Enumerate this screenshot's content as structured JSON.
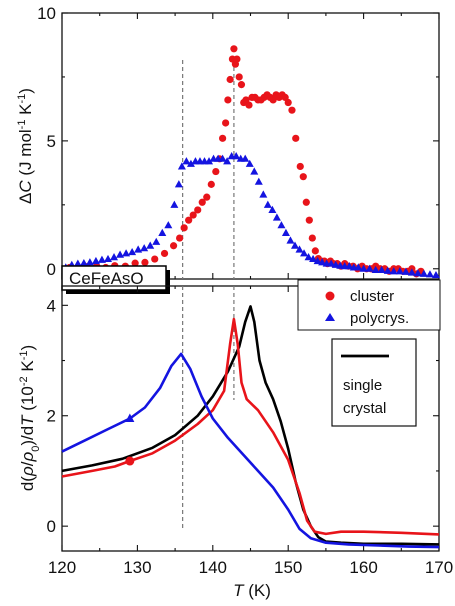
{
  "chart_data": [
    {
      "panel": "top",
      "type": "scatter",
      "ylabel_parts": [
        "Δ",
        "C",
        " (J mol",
        "-1",
        " K",
        "-1",
        ")"
      ],
      "xlim": [
        120,
        170
      ],
      "ylim": [
        -0.4,
        10
      ],
      "yticks": [
        0,
        5,
        10
      ],
      "dashed_lines_x": [
        136,
        142.8
      ],
      "sample_label": "CeFeAsO",
      "series": [
        {
          "name": "cluster",
          "marker": "circle",
          "color": "#e8141a",
          "points": [
            [
              121,
              0.05
            ],
            [
              122.2,
              0.0
            ],
            [
              123.3,
              0.08
            ],
            [
              124.6,
              0.1
            ],
            [
              125.8,
              0.05
            ],
            [
              127,
              0.12
            ],
            [
              128.4,
              0.1
            ],
            [
              129.7,
              0.22
            ],
            [
              131,
              0.25
            ],
            [
              132.3,
              0.38
            ],
            [
              133.6,
              0.6
            ],
            [
              134.8,
              0.9
            ],
            [
              135.6,
              1.2
            ],
            [
              136.2,
              1.6
            ],
            [
              136.8,
              1.9
            ],
            [
              137.4,
              2.1
            ],
            [
              138,
              2.3
            ],
            [
              138.6,
              2.6
            ],
            [
              139.2,
              2.8
            ],
            [
              139.8,
              3.3
            ],
            [
              140.4,
              3.8
            ],
            [
              140.9,
              4.3
            ],
            [
              141.3,
              5.1
            ],
            [
              141.7,
              5.7
            ],
            [
              142.0,
              6.6
            ],
            [
              142.3,
              7.4
            ],
            [
              142.6,
              8.2
            ],
            [
              142.8,
              8.6
            ],
            [
              143.0,
              8.0
            ],
            [
              143.2,
              8.2
            ],
            [
              143.5,
              7.5
            ],
            [
              143.8,
              7.2
            ],
            [
              144.1,
              6.5
            ],
            [
              144.4,
              6.6
            ],
            [
              144.8,
              6.4
            ],
            [
              145.2,
              6.7
            ],
            [
              145.6,
              6.7
            ],
            [
              146,
              6.6
            ],
            [
              146.4,
              6.6
            ],
            [
              146.8,
              6.7
            ],
            [
              147.2,
              6.8
            ],
            [
              147.6,
              6.7
            ],
            [
              148,
              6.6
            ],
            [
              148.4,
              6.8
            ],
            [
              148.8,
              6.7
            ],
            [
              149.2,
              6.8
            ],
            [
              149.6,
              6.7
            ],
            [
              150,
              6.5
            ],
            [
              150.5,
              6.2
            ],
            [
              151,
              5.1
            ],
            [
              151.6,
              4.0
            ],
            [
              152,
              3.6
            ],
            [
              152.4,
              2.6
            ],
            [
              152.8,
              1.9
            ],
            [
              153.2,
              1.2
            ],
            [
              153.6,
              0.7
            ],
            [
              154,
              0.4
            ],
            [
              154.4,
              0.3
            ],
            [
              154.8,
              0.3
            ],
            [
              155.2,
              0.2
            ],
            [
              155.6,
              0.3
            ],
            [
              156,
              0.2
            ],
            [
              156.5,
              0.2
            ],
            [
              157,
              0.1
            ],
            [
              157.5,
              0.2
            ],
            [
              158,
              0.1
            ],
            [
              158.6,
              0.1
            ],
            [
              159.2,
              0.0
            ],
            [
              159.8,
              0.1
            ],
            [
              160.4,
              0.0
            ],
            [
              161,
              0.0
            ],
            [
              161.6,
              0.1
            ],
            [
              162.2,
              0.0
            ],
            [
              162.8,
              0.0
            ],
            [
              163.4,
              -0.1
            ],
            [
              164,
              0.0
            ],
            [
              164.6,
              0.0
            ],
            [
              165.2,
              -0.1
            ],
            [
              165.8,
              -0.1
            ],
            [
              166.4,
              0.0
            ],
            [
              167,
              -0.2
            ],
            [
              167.6,
              -0.1
            ]
          ]
        },
        {
          "name": "polycrys.",
          "marker": "triangle",
          "color": "#1414e0",
          "points": [
            [
              120.5,
              0.05
            ],
            [
              121.3,
              0.15
            ],
            [
              122.1,
              0.2
            ],
            [
              122.9,
              0.22
            ],
            [
              123.7,
              0.25
            ],
            [
              124.5,
              0.3
            ],
            [
              125.3,
              0.35
            ],
            [
              126.1,
              0.38
            ],
            [
              126.9,
              0.45
            ],
            [
              127.7,
              0.55
            ],
            [
              128.5,
              0.6
            ],
            [
              129.3,
              0.65
            ],
            [
              130.1,
              0.75
            ],
            [
              130.9,
              0.8
            ],
            [
              131.7,
              0.9
            ],
            [
              132.5,
              1.05
            ],
            [
              133.3,
              1.4
            ],
            [
              134.1,
              1.7
            ],
            [
              134.9,
              2.5
            ],
            [
              135.5,
              3.3
            ],
            [
              135.9,
              4.0
            ],
            [
              136.5,
              4.2
            ],
            [
              137.1,
              4.1
            ],
            [
              137.7,
              4.2
            ],
            [
              138.3,
              4.2
            ],
            [
              138.9,
              4.2
            ],
            [
              139.5,
              4.2
            ],
            [
              140.1,
              4.3
            ],
            [
              140.7,
              4.3
            ],
            [
              141.3,
              4.3
            ],
            [
              141.9,
              4.2
            ],
            [
              142.5,
              4.4
            ],
            [
              143.1,
              4.4
            ],
            [
              143.7,
              4.3
            ],
            [
              144.3,
              4.3
            ],
            [
              144.9,
              4.1
            ],
            [
              145.5,
              3.8
            ],
            [
              146.1,
              3.4
            ],
            [
              146.7,
              2.9
            ],
            [
              147.3,
              2.5
            ],
            [
              147.9,
              2.3
            ],
            [
              148.5,
              2.0
            ],
            [
              149.1,
              1.7
            ],
            [
              149.7,
              1.4
            ],
            [
              150.3,
              1.1
            ],
            [
              150.9,
              0.9
            ],
            [
              151.5,
              0.75
            ],
            [
              152.1,
              0.6
            ],
            [
              152.7,
              0.45
            ],
            [
              153.3,
              0.38
            ],
            [
              153.9,
              0.3
            ],
            [
              154.5,
              0.25
            ],
            [
              155.1,
              0.2
            ],
            [
              155.7,
              0.2
            ],
            [
              156.3,
              0.15
            ],
            [
              156.9,
              0.12
            ],
            [
              157.5,
              0.1
            ],
            [
              158.1,
              0.1
            ],
            [
              158.7,
              0.05
            ],
            [
              159.3,
              0.05
            ],
            [
              160,
              0.0
            ],
            [
              160.8,
              0.0
            ],
            [
              161.6,
              -0.05
            ],
            [
              162.4,
              -0.05
            ],
            [
              163.2,
              -0.08
            ],
            [
              164,
              -0.1
            ],
            [
              164.8,
              -0.1
            ],
            [
              165.6,
              -0.12
            ],
            [
              166.4,
              -0.15
            ],
            [
              167.2,
              -0.18
            ],
            [
              168,
              -0.2
            ],
            [
              168.8,
              -0.22
            ],
            [
              169.6,
              -0.25
            ]
          ]
        }
      ]
    },
    {
      "panel": "bottom",
      "type": "line",
      "ylabel_parts": [
        "d(",
        "ρ",
        "/",
        "ρ",
        "0",
        ")/d",
        "T",
        "  (10",
        "-2",
        " K",
        "-1",
        ")"
      ],
      "xlabel_parts": [
        "T",
        " (K)"
      ],
      "xlim": [
        120,
        170
      ],
      "xticks": [
        120,
        130,
        140,
        150,
        160,
        170
      ],
      "ylim": [
        -0.45,
        4.35
      ],
      "yticks": [
        0,
        2,
        4
      ],
      "dashed_lines_x": [
        136,
        142.8
      ],
      "legend": [
        {
          "label": "cluster",
          "marker": "circle",
          "color": "#e8141a"
        },
        {
          "label": "polycrys.",
          "marker": "triangle",
          "color": "#1414e0"
        }
      ],
      "legend2": [
        "single",
        "crystal"
      ],
      "series": [
        {
          "name": "single crystal",
          "color": "#000000",
          "points": [
            [
              120,
              1.0
            ],
            [
              124,
              1.1
            ],
            [
              128,
              1.22
            ],
            [
              132,
              1.42
            ],
            [
              135,
              1.65
            ],
            [
              138,
              2.0
            ],
            [
              140,
              2.35
            ],
            [
              142,
              2.8
            ],
            [
              143.5,
              3.25
            ],
            [
              144.3,
              3.7
            ],
            [
              145,
              3.98
            ],
            [
              145.5,
              3.7
            ],
            [
              146.2,
              3.0
            ],
            [
              147,
              2.6
            ],
            [
              148,
              2.3
            ],
            [
              149,
              1.9
            ],
            [
              150,
              1.4
            ],
            [
              151,
              0.8
            ],
            [
              152,
              0.3
            ],
            [
              153,
              0.0
            ],
            [
              154,
              -0.2
            ],
            [
              155,
              -0.28
            ],
            [
              157,
              -0.3
            ],
            [
              160,
              -0.32
            ],
            [
              165,
              -0.32
            ],
            [
              170,
              -0.33
            ]
          ]
        },
        {
          "name": "cluster",
          "color": "#e8141a",
          "marker_at": [
            129,
            1.18
          ],
          "points": [
            [
              120,
              0.9
            ],
            [
              124,
              1.0
            ],
            [
              127,
              1.08
            ],
            [
              129,
              1.18
            ],
            [
              132,
              1.32
            ],
            [
              135,
              1.55
            ],
            [
              138,
              1.85
            ],
            [
              140,
              2.1
            ],
            [
              141.5,
              2.45
            ],
            [
              142.3,
              3.3
            ],
            [
              142.8,
              3.75
            ],
            [
              143.3,
              3.3
            ],
            [
              143.8,
              2.6
            ],
            [
              144.5,
              2.3
            ],
            [
              146,
              2.1
            ],
            [
              148,
              1.7
            ],
            [
              150,
              1.2
            ],
            [
              151.5,
              0.6
            ],
            [
              152.5,
              0.1
            ],
            [
              153.5,
              -0.1
            ],
            [
              155,
              -0.14
            ],
            [
              157,
              -0.1
            ],
            [
              160,
              -0.1
            ],
            [
              165,
              -0.12
            ],
            [
              170,
              -0.15
            ]
          ]
        },
        {
          "name": "polycrys.",
          "color": "#1414e0",
          "marker_at": [
            129,
            1.95
          ],
          "points": [
            [
              120,
              1.35
            ],
            [
              123,
              1.55
            ],
            [
              126,
              1.75
            ],
            [
              129,
              1.95
            ],
            [
              131,
              2.15
            ],
            [
              133,
              2.5
            ],
            [
              134.5,
              2.9
            ],
            [
              135.8,
              3.12
            ],
            [
              137,
              2.85
            ],
            [
              138.5,
              2.35
            ],
            [
              140,
              1.95
            ],
            [
              142,
              1.6
            ],
            [
              144,
              1.3
            ],
            [
              146,
              1.0
            ],
            [
              148,
              0.7
            ],
            [
              150,
              0.3
            ],
            [
              151.5,
              -0.05
            ],
            [
              153,
              -0.22
            ],
            [
              155,
              -0.3
            ],
            [
              158,
              -0.33
            ],
            [
              162,
              -0.35
            ],
            [
              166,
              -0.37
            ],
            [
              170,
              -0.38
            ]
          ]
        }
      ]
    }
  ]
}
